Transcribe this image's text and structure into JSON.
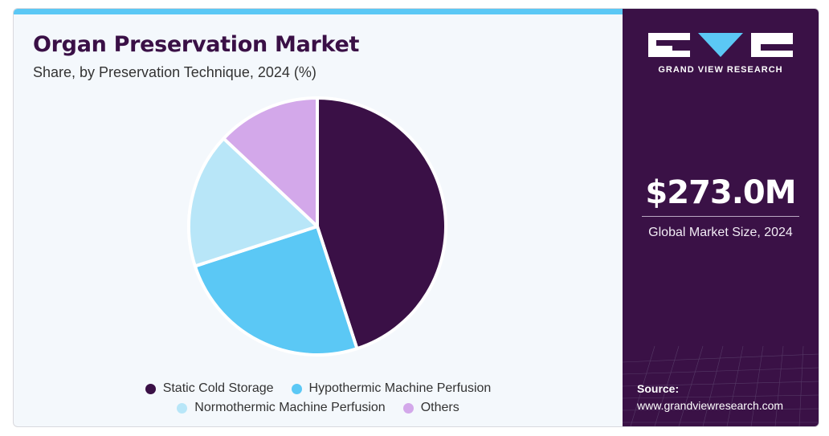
{
  "header": {
    "title": "Organ Preservation Market",
    "subtitle": "Share, by Preservation Technique, 2024 (%)"
  },
  "chart_data": {
    "type": "pie",
    "title": "Organ Preservation Market",
    "subtitle": "Share, by Preservation Technique, 2024 (%)",
    "categories": [
      "Static Cold Storage",
      "Hypothermic Machine Perfusion",
      "Normothermic Machine Perfusion",
      "Others"
    ],
    "values": [
      45,
      25,
      17,
      13
    ],
    "colors": [
      "#3a1046",
      "#5bc8f5",
      "#b8e6f8",
      "#d3a8ea"
    ],
    "legend_position": "bottom"
  },
  "brand": {
    "logo_text": "GRAND VIEW RESEARCH",
    "market_value": "$273.0M",
    "market_label": "Global Market Size, 2024",
    "source_label": "Source:",
    "source_url": "www.grandviewresearch.com",
    "background_color": "#3a1146",
    "accent_color": "#5bc8f5"
  }
}
